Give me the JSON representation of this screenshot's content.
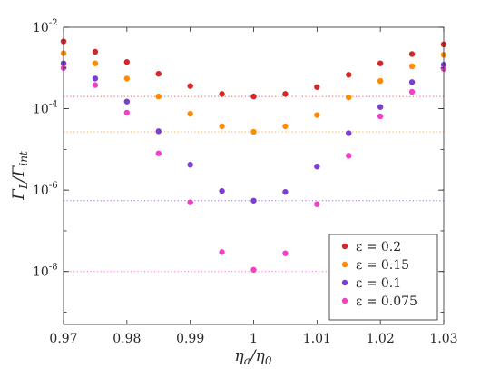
{
  "chart_data": {
    "type": "scatter",
    "x_scale": "linear",
    "y_scale": "log",
    "xlim": [
      0.97,
      1.03
    ],
    "ylim": [
      5e-10,
      0.01
    ],
    "x_ticks": [
      0.97,
      0.98,
      0.99,
      1.0,
      1.01,
      1.02,
      1.03
    ],
    "x_tick_labels": [
      "0.97",
      "0.98",
      "0.99",
      "1",
      "1.01",
      "1.02",
      "1.03"
    ],
    "y_ticks": [
      1e-08,
      1e-06,
      0.0001,
      0.01
    ],
    "y_tick_labels": [
      {
        "base": "10",
        "exp": "-8"
      },
      {
        "base": "10",
        "exp": "-6"
      },
      {
        "base": "10",
        "exp": "-4"
      },
      {
        "base": "10",
        "exp": "-2"
      }
    ],
    "xlabel": {
      "main": "η",
      "sub1": "a",
      "mid": "/η",
      "sub2": "0"
    },
    "ylabel": {
      "main": "Γ",
      "sub1": "L",
      "mid": "/Γ",
      "sub2": "int"
    },
    "grid": false,
    "legend_position": "bottom-right",
    "x": [
      0.97,
      0.975,
      0.98,
      0.985,
      0.99,
      0.995,
      1.0,
      1.005,
      1.01,
      1.015,
      1.02,
      1.025,
      1.03
    ],
    "series": [
      {
        "name": "ε = 0.2",
        "color": "#d62728",
        "values": [
          0.0045,
          0.0025,
          0.0014,
          0.00072,
          0.00036,
          0.00023,
          0.0002,
          0.00023,
          0.00034,
          0.00068,
          0.0013,
          0.0022,
          0.0038
        ],
        "reference_line": 0.0002
      },
      {
        "name": "ε = 0.15",
        "color": "#ff8c00",
        "values": [
          0.0023,
          0.0013,
          0.00055,
          0.0002,
          7.5e-05,
          3.7e-05,
          2.7e-05,
          3.7e-05,
          7e-05,
          0.00019,
          0.00048,
          0.0011,
          0.0021
        ],
        "reference_line": 2.7e-05
      },
      {
        "name": "ε = 0.1",
        "color": "#7b3fd0",
        "values": [
          0.0013,
          0.00055,
          0.00015,
          2.8e-05,
          4.2e-06,
          9.5e-07,
          5.5e-07,
          9e-07,
          3.8e-06,
          2.5e-05,
          0.00011,
          0.00045,
          0.0012
        ],
        "reference_line": 5.5e-07
      },
      {
        "name": "ε = 0.075",
        "color": "#f23fc8",
        "values": [
          0.001,
          0.00038,
          8e-05,
          8e-06,
          5e-07,
          3e-08,
          null,
          2.8e-08,
          4.5e-07,
          7e-06,
          6.5e-05,
          0.00026,
          0.00095
        ],
        "reference_line": 1e-08
      },
      {
        "name": "",
        "color": "#f23fc8",
        "values": [
          null,
          null,
          null,
          null,
          null,
          null,
          1.1e-08,
          null,
          null,
          null,
          null,
          null,
          null
        ]
      }
    ]
  }
}
